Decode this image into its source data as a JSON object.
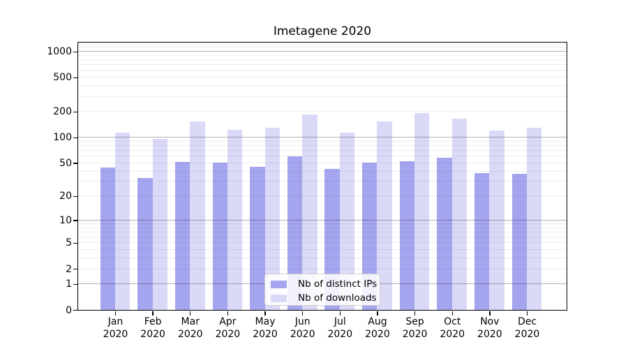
{
  "title": "Imetagene 2020",
  "chart_data": {
    "type": "bar",
    "title": "Imetagene 2020",
    "categories": [
      "Jan",
      "Feb",
      "Mar",
      "Apr",
      "May",
      "Jun",
      "Jul",
      "Aug",
      "Sep",
      "Oct",
      "Nov",
      "Dec"
    ],
    "category_year": "2020",
    "series": [
      {
        "name": "Nb of distinct IPs",
        "color": "#a5a5ef",
        "values": [
          44,
          33,
          51,
          50,
          45,
          60,
          42,
          50,
          52,
          58,
          38,
          37
        ]
      },
      {
        "name": "Nb of downloads",
        "color": "#dadaf8",
        "values": [
          113,
          95,
          152,
          123,
          129,
          185,
          113,
          153,
          192,
          165,
          120,
          129
        ]
      }
    ],
    "y_scale": "symlog (log1p)",
    "y_ticks": [
      0,
      1,
      2,
      5,
      10,
      20,
      50,
      100,
      200,
      500,
      1000
    ],
    "y_max": 1270,
    "ylim": [
      0,
      1270
    ],
    "grid": true,
    "legend_position": "lower center"
  },
  "colors": {
    "background": "#ffffff",
    "spine": "#000000",
    "major_grid": "#b0b0b0",
    "minor_grid": "#ebebeb"
  }
}
